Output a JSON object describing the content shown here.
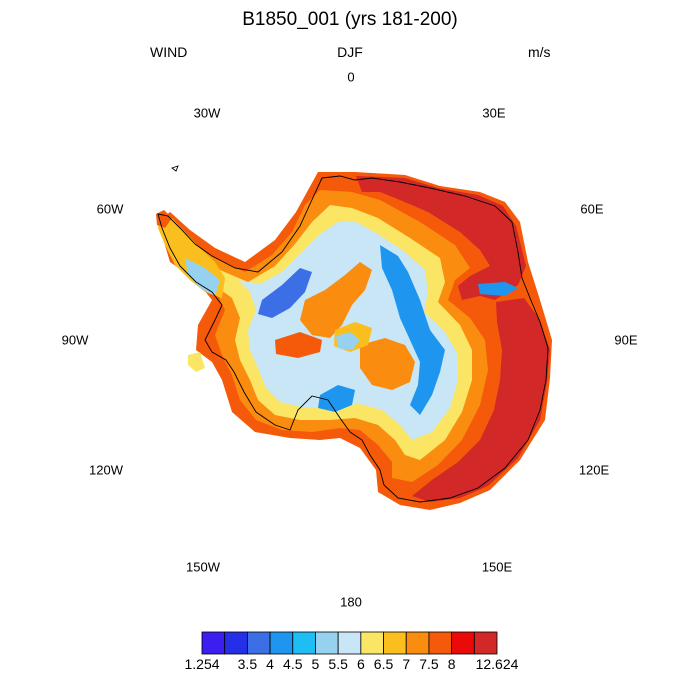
{
  "title": "B1850_001 (yrs 181-200)",
  "variable": "WIND",
  "season": "DJF",
  "units": "m/s",
  "longitude_labels": {
    "lon_0": "0",
    "lon_30e": "30E",
    "lon_60e": "60E",
    "lon_90e": "90E",
    "lon_120e": "120E",
    "lon_150e": "150E",
    "lon_180": "180",
    "lon_150w": "150W",
    "lon_120w": "120W",
    "lon_90w": "90W",
    "lon_60w": "60W",
    "lon_30w": "30W"
  },
  "colorbar": {
    "labels": [
      "1.254",
      "3.5",
      "4",
      "4.5",
      "5",
      "5.5",
      "6",
      "6.5",
      "7",
      "7.5",
      "8",
      "12.624"
    ],
    "colors": [
      "#3b1ef0",
      "#2430e8",
      "#3c6ee6",
      "#1e96f0",
      "#1ebef5",
      "#96d2f0",
      "#c8e6f5",
      "#fae664",
      "#fabe1e",
      "#fa8c0f",
      "#f55a0a",
      "#eb0a0a",
      "#d22828"
    ]
  },
  "colors": {
    "coastline": "#000000",
    "strongest_wind": "#d22828"
  }
}
